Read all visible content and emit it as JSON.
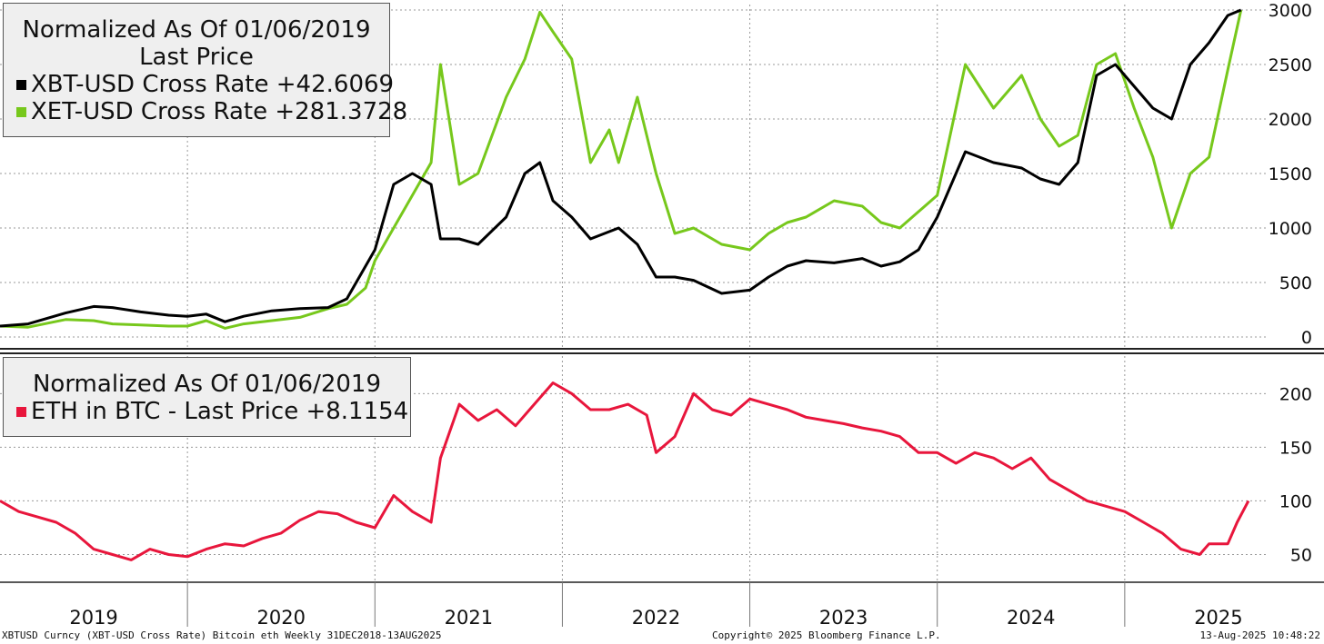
{
  "top_legend": {
    "title_line1": "Normalized As Of 01/06/2019",
    "title_line2": "Last Price",
    "series": [
      {
        "label": "XBT-USD Cross Rate +42.6069",
        "color": "#000000"
      },
      {
        "label": "XET-USD Cross Rate +281.3728",
        "color": "#77c81c"
      }
    ]
  },
  "bottom_legend": {
    "title": "Normalized As Of 01/06/2019",
    "series": [
      {
        "label": "ETH in BTC - Last Price  +8.1154",
        "color": "#e8163c"
      }
    ]
  },
  "footer": {
    "left": "XBTUSD Curncy (XBT-USD Cross Rate) Bitcoin eth  Weekly 31DEC2018-13AUG2025",
    "center": "Copyright© 2025 Bloomberg Finance L.P.",
    "right": "13-Aug-2025 10:48:22"
  },
  "chart_data": [
    {
      "type": "line",
      "title": "Normalized As Of 01/06/2019",
      "subtitle": "Last Price",
      "ylim": [
        -100,
        3050
      ],
      "yticks": [
        0,
        500,
        1000,
        1500,
        2000,
        2500,
        3000
      ],
      "grid": true,
      "legend": "top-left",
      "x_categories": [
        "2019",
        "2020",
        "2021",
        "2022",
        "2023",
        "2024",
        "2025"
      ],
      "series": [
        {
          "name": "XBT-USD Cross Rate",
          "last": "+42.6069",
          "color": "#000000",
          "points": [
            [
              2019.0,
              100
            ],
            [
              2019.15,
              120
            ],
            [
              2019.35,
              220
            ],
            [
              2019.5,
              280
            ],
            [
              2019.6,
              270
            ],
            [
              2019.75,
              230
            ],
            [
              2019.9,
              200
            ],
            [
              2020.0,
              190
            ],
            [
              2020.1,
              210
            ],
            [
              2020.2,
              140
            ],
            [
              2020.3,
              190
            ],
            [
              2020.45,
              240
            ],
            [
              2020.6,
              260
            ],
            [
              2020.75,
              270
            ],
            [
              2020.85,
              350
            ],
            [
              2020.95,
              650
            ],
            [
              2021.0,
              800
            ],
            [
              2021.1,
              1400
            ],
            [
              2021.2,
              1500
            ],
            [
              2021.3,
              1400
            ],
            [
              2021.35,
              900
            ],
            [
              2021.45,
              900
            ],
            [
              2021.55,
              850
            ],
            [
              2021.7,
              1100
            ],
            [
              2021.8,
              1500
            ],
            [
              2021.88,
              1600
            ],
            [
              2021.95,
              1250
            ],
            [
              2022.05,
              1100
            ],
            [
              2022.15,
              900
            ],
            [
              2022.3,
              1000
            ],
            [
              2022.4,
              850
            ],
            [
              2022.5,
              550
            ],
            [
              2022.6,
              550
            ],
            [
              2022.7,
              520
            ],
            [
              2022.85,
              400
            ],
            [
              2023.0,
              430
            ],
            [
              2023.1,
              550
            ],
            [
              2023.2,
              650
            ],
            [
              2023.3,
              700
            ],
            [
              2023.45,
              680
            ],
            [
              2023.6,
              720
            ],
            [
              2023.7,
              650
            ],
            [
              2023.8,
              690
            ],
            [
              2023.9,
              800
            ],
            [
              2024.0,
              1100
            ],
            [
              2024.15,
              1700
            ],
            [
              2024.3,
              1600
            ],
            [
              2024.45,
              1550
            ],
            [
              2024.55,
              1450
            ],
            [
              2024.65,
              1400
            ],
            [
              2024.75,
              1600
            ],
            [
              2024.85,
              2400
            ],
            [
              2024.95,
              2500
            ],
            [
              2025.05,
              2300
            ],
            [
              2025.15,
              2100
            ],
            [
              2025.25,
              2000
            ],
            [
              2025.35,
              2500
            ],
            [
              2025.45,
              2700
            ],
            [
              2025.55,
              2950
            ],
            [
              2025.62,
              3000
            ]
          ]
        },
        {
          "name": "XET-USD Cross Rate",
          "last": "+281.3728",
          "color": "#77c81c",
          "points": [
            [
              2019.0,
              100
            ],
            [
              2019.15,
              90
            ],
            [
              2019.35,
              160
            ],
            [
              2019.5,
              150
            ],
            [
              2019.6,
              120
            ],
            [
              2019.75,
              110
            ],
            [
              2019.9,
              100
            ],
            [
              2020.0,
              100
            ],
            [
              2020.1,
              150
            ],
            [
              2020.2,
              80
            ],
            [
              2020.3,
              120
            ],
            [
              2020.45,
              150
            ],
            [
              2020.6,
              180
            ],
            [
              2020.75,
              260
            ],
            [
              2020.85,
              300
            ],
            [
              2020.95,
              450
            ],
            [
              2021.0,
              700
            ],
            [
              2021.1,
              1000
            ],
            [
              2021.2,
              1300
            ],
            [
              2021.3,
              1600
            ],
            [
              2021.35,
              2500
            ],
            [
              2021.45,
              1400
            ],
            [
              2021.55,
              1500
            ],
            [
              2021.7,
              2200
            ],
            [
              2021.8,
              2550
            ],
            [
              2021.88,
              2980
            ],
            [
              2021.95,
              2800
            ],
            [
              2022.05,
              2550
            ],
            [
              2022.15,
              1600
            ],
            [
              2022.25,
              1900
            ],
            [
              2022.3,
              1600
            ],
            [
              2022.4,
              2200
            ],
            [
              2022.5,
              1500
            ],
            [
              2022.6,
              950
            ],
            [
              2022.7,
              1000
            ],
            [
              2022.85,
              850
            ],
            [
              2023.0,
              800
            ],
            [
              2023.1,
              950
            ],
            [
              2023.2,
              1050
            ],
            [
              2023.3,
              1100
            ],
            [
              2023.45,
              1250
            ],
            [
              2023.6,
              1200
            ],
            [
              2023.7,
              1050
            ],
            [
              2023.8,
              1000
            ],
            [
              2023.9,
              1150
            ],
            [
              2024.0,
              1300
            ],
            [
              2024.15,
              2500
            ],
            [
              2024.3,
              2100
            ],
            [
              2024.45,
              2400
            ],
            [
              2024.55,
              2000
            ],
            [
              2024.65,
              1750
            ],
            [
              2024.75,
              1850
            ],
            [
              2024.85,
              2500
            ],
            [
              2024.95,
              2600
            ],
            [
              2025.05,
              2100
            ],
            [
              2025.15,
              1650
            ],
            [
              2025.25,
              1000
            ],
            [
              2025.35,
              1500
            ],
            [
              2025.45,
              1650
            ],
            [
              2025.55,
              2450
            ],
            [
              2025.62,
              3000
            ]
          ]
        }
      ]
    },
    {
      "type": "line",
      "title": "Normalized As Of 01/06/2019",
      "ylim": [
        25,
        235
      ],
      "yticks": [
        50,
        100,
        150,
        200
      ],
      "grid": true,
      "legend": "top-left",
      "x_categories": [
        "2019",
        "2020",
        "2021",
        "2022",
        "2023",
        "2024",
        "2025"
      ],
      "series": [
        {
          "name": "ETH in BTC - Last Price",
          "last": "+8.1154",
          "color": "#e8163c",
          "points": [
            [
              2019.0,
              100
            ],
            [
              2019.1,
              90
            ],
            [
              2019.2,
              85
            ],
            [
              2019.3,
              80
            ],
            [
              2019.4,
              70
            ],
            [
              2019.5,
              55
            ],
            [
              2019.6,
              50
            ],
            [
              2019.7,
              45
            ],
            [
              2019.8,
              55
            ],
            [
              2019.9,
              50
            ],
            [
              2020.0,
              48
            ],
            [
              2020.1,
              55
            ],
            [
              2020.2,
              60
            ],
            [
              2020.3,
              58
            ],
            [
              2020.4,
              65
            ],
            [
              2020.5,
              70
            ],
            [
              2020.6,
              82
            ],
            [
              2020.7,
              90
            ],
            [
              2020.8,
              88
            ],
            [
              2020.9,
              80
            ],
            [
              2021.0,
              75
            ],
            [
              2021.1,
              105
            ],
            [
              2021.2,
              90
            ],
            [
              2021.3,
              80
            ],
            [
              2021.35,
              140
            ],
            [
              2021.45,
              190
            ],
            [
              2021.55,
              175
            ],
            [
              2021.65,
              185
            ],
            [
              2021.75,
              170
            ],
            [
              2021.85,
              190
            ],
            [
              2021.95,
              210
            ],
            [
              2022.05,
              200
            ],
            [
              2022.15,
              185
            ],
            [
              2022.25,
              185
            ],
            [
              2022.35,
              190
            ],
            [
              2022.45,
              180
            ],
            [
              2022.5,
              145
            ],
            [
              2022.6,
              160
            ],
            [
              2022.7,
              200
            ],
            [
              2022.8,
              185
            ],
            [
              2022.9,
              180
            ],
            [
              2023.0,
              195
            ],
            [
              2023.1,
              190
            ],
            [
              2023.2,
              185
            ],
            [
              2023.3,
              178
            ],
            [
              2023.4,
              175
            ],
            [
              2023.5,
              172
            ],
            [
              2023.6,
              168
            ],
            [
              2023.7,
              165
            ],
            [
              2023.8,
              160
            ],
            [
              2023.9,
              145
            ],
            [
              2024.0,
              145
            ],
            [
              2024.1,
              135
            ],
            [
              2024.2,
              145
            ],
            [
              2024.3,
              140
            ],
            [
              2024.4,
              130
            ],
            [
              2024.5,
              140
            ],
            [
              2024.6,
              120
            ],
            [
              2024.7,
              110
            ],
            [
              2024.8,
              100
            ],
            [
              2024.9,
              95
            ],
            [
              2025.0,
              90
            ],
            [
              2025.1,
              80
            ],
            [
              2025.2,
              70
            ],
            [
              2025.3,
              55
            ],
            [
              2025.4,
              50
            ],
            [
              2025.45,
              60
            ],
            [
              2025.55,
              60
            ],
            [
              2025.6,
              80
            ],
            [
              2025.66,
              100
            ]
          ]
        }
      ]
    }
  ]
}
